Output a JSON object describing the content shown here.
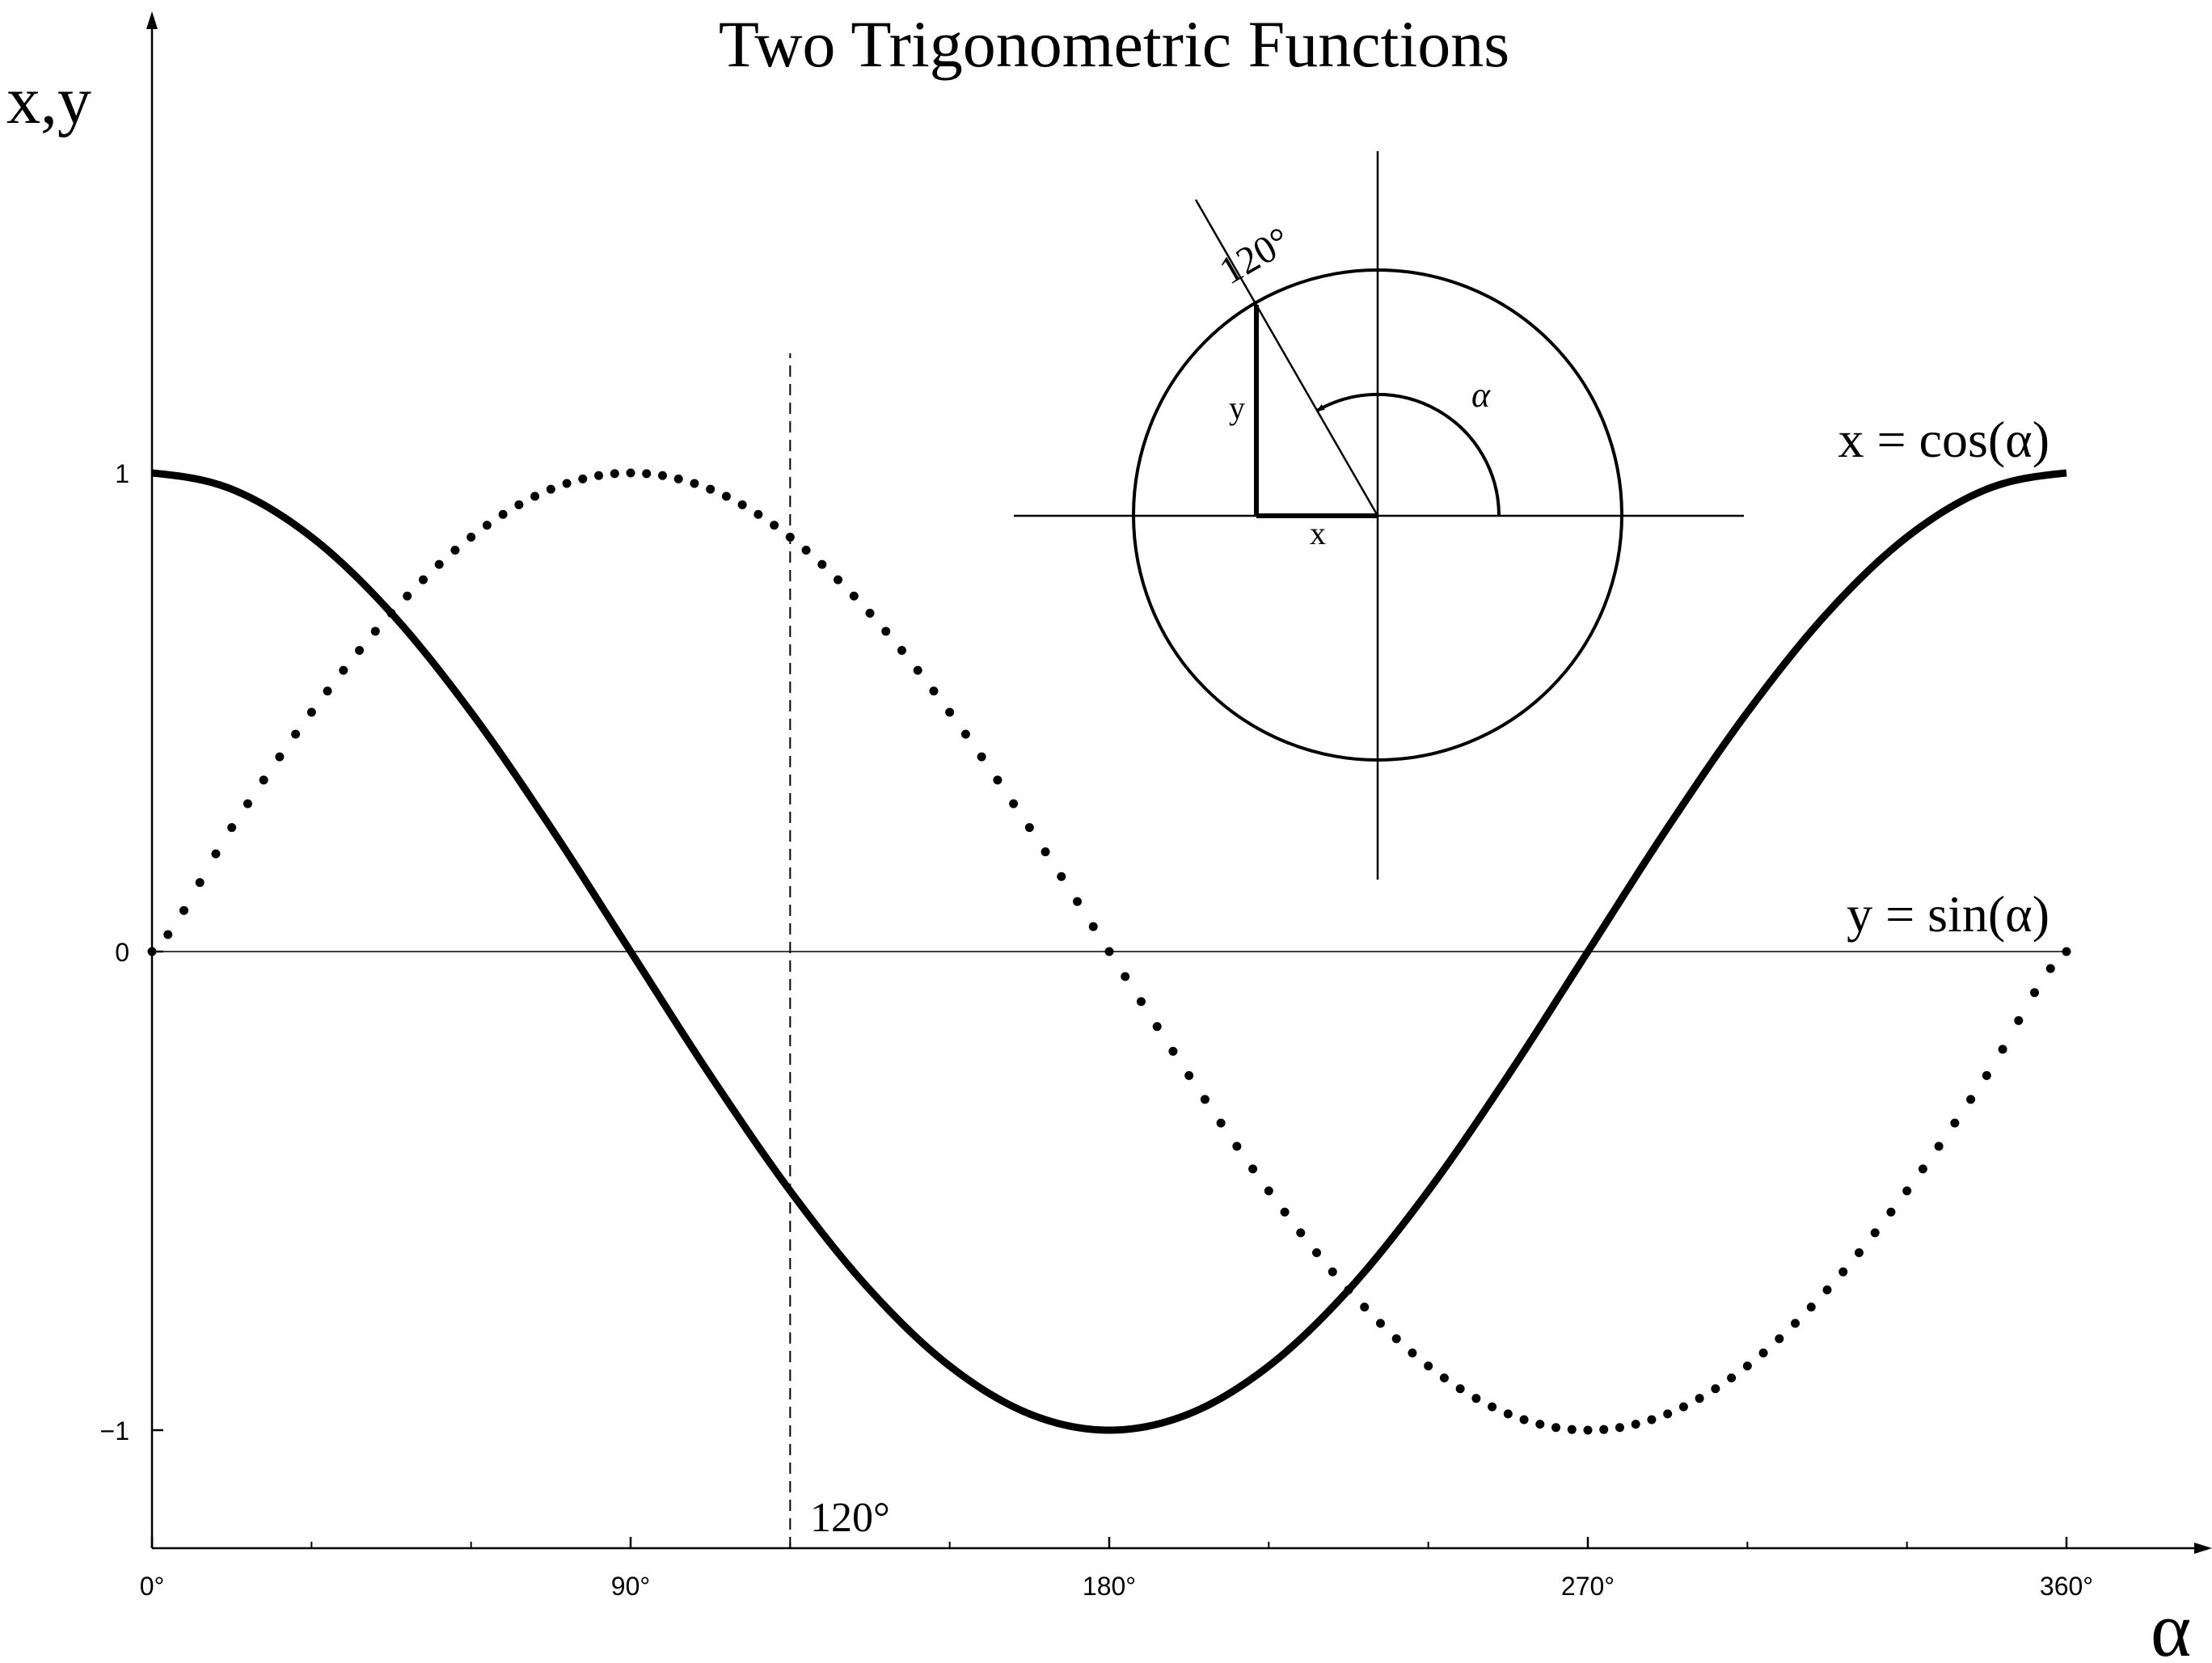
{
  "chart_data": {
    "type": "line",
    "title": "Two Trigonometric Functions",
    "xlabel": "α",
    "ylabel": "x,y",
    "xlim": [
      0,
      360
    ],
    "ylim": [
      -1.25,
      1.25
    ],
    "x_ticks": [
      {
        "value": 0,
        "label": "0°"
      },
      {
        "value": 90,
        "label": "90°"
      },
      {
        "value": 180,
        "label": "180°"
      },
      {
        "value": 270,
        "label": "270°"
      },
      {
        "value": 360,
        "label": "360°"
      }
    ],
    "x_minor_ticks": [
      30,
      60,
      120,
      150,
      210,
      240,
      300,
      330
    ],
    "y_ticks": [
      {
        "value": 1,
        "label": "1"
      },
      {
        "value": 0,
        "label": "0"
      },
      {
        "value": -1,
        "label": "−1"
      }
    ],
    "x": [
      0,
      15,
      30,
      45,
      60,
      75,
      90,
      105,
      120,
      135,
      150,
      165,
      180,
      195,
      210,
      225,
      240,
      255,
      270,
      285,
      300,
      315,
      330,
      345,
      360
    ],
    "series": [
      {
        "name": "x = cos(α)",
        "style": "solid-thick",
        "values": [
          1.0,
          0.966,
          0.866,
          0.707,
          0.5,
          0.259,
          0.0,
          -0.259,
          -0.5,
          -0.707,
          -0.866,
          -0.966,
          -1.0,
          -0.966,
          -0.866,
          -0.707,
          -0.5,
          -0.259,
          0.0,
          0.259,
          0.5,
          0.707,
          0.866,
          0.966,
          1.0
        ]
      },
      {
        "name": "y = sin(α)",
        "style": "dotted",
        "values": [
          0.0,
          0.259,
          0.5,
          0.707,
          0.866,
          0.966,
          1.0,
          0.966,
          0.866,
          0.707,
          0.5,
          0.259,
          0.0,
          -0.259,
          -0.5,
          -0.707,
          -0.866,
          -0.966,
          -1.0,
          -0.966,
          -0.866,
          -0.707,
          -0.5,
          -0.259,
          0.0
        ]
      }
    ],
    "reference_lines": [
      {
        "type": "horizontal",
        "y": 0,
        "style": "solid-thin"
      },
      {
        "type": "vertical",
        "x": 120,
        "style": "dashed",
        "y_range": [
          -1.25,
          1.25
        ],
        "label": "120°"
      }
    ],
    "grid": false,
    "legend": "none",
    "inset": {
      "type": "unit-circle-diagram",
      "angle_deg": 120,
      "angle_label": "120°",
      "arc_label": "α",
      "x_label": "x",
      "y_label": "y"
    },
    "colors": {
      "line": "#000000",
      "background": "#ffffff"
    }
  }
}
